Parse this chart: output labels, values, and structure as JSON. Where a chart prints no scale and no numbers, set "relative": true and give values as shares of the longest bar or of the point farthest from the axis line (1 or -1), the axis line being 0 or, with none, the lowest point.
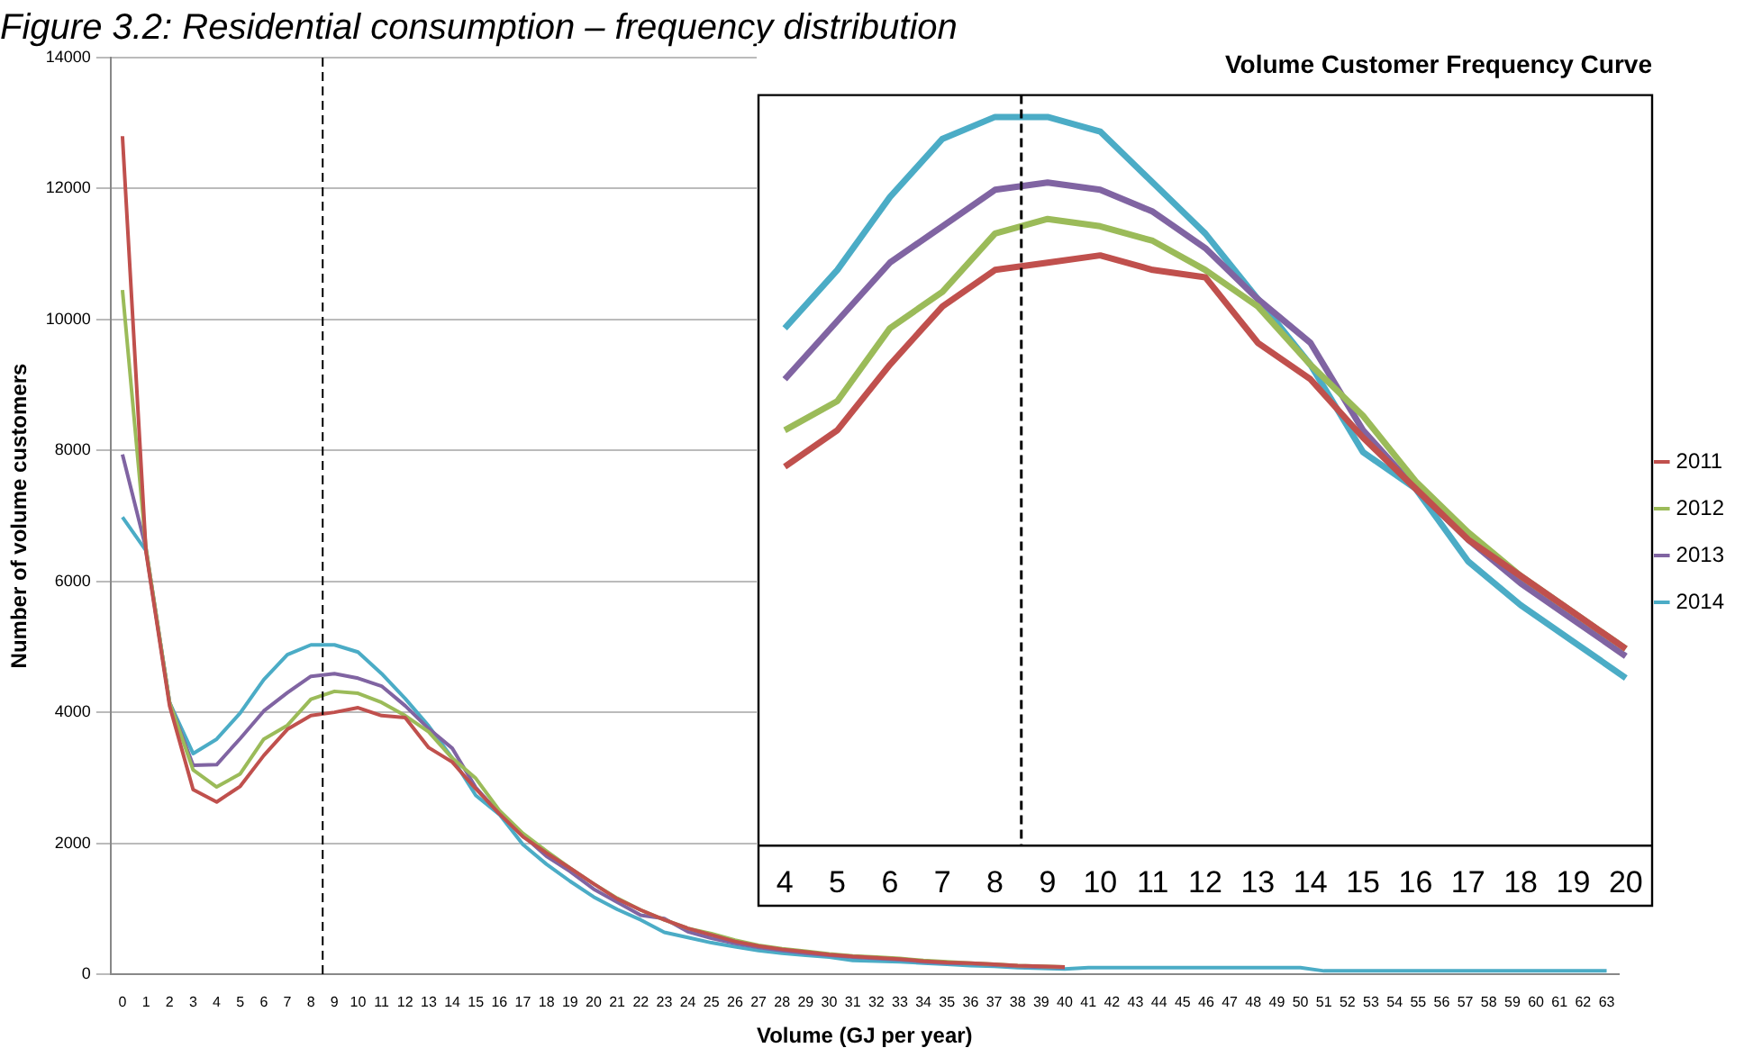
{
  "chart_data": [
    {
      "type": "line",
      "title": "Figure 3.2: Residential consumption – frequency distribution",
      "xlabel": "Volume (GJ per year)",
      "ylabel": "Number of volume customers",
      "x": [
        0,
        1,
        2,
        3,
        4,
        5,
        6,
        7,
        8,
        9,
        10,
        11,
        12,
        13,
        14,
        15,
        16,
        17,
        18,
        19,
        20,
        21,
        22,
        23,
        24,
        25,
        26,
        27,
        28,
        29,
        30,
        31,
        32,
        33,
        34,
        35,
        36,
        37,
        38,
        39,
        40,
        41,
        42,
        43,
        44,
        45,
        46,
        47,
        48,
        49,
        50,
        51,
        52,
        53,
        54,
        55,
        56,
        57,
        58,
        59,
        60,
        61,
        62,
        63
      ],
      "series": [
        {
          "name": "2011",
          "color": "#c0504d",
          "values": [
            12800,
            6450,
            4100,
            2820,
            2630,
            2870,
            3340,
            3740,
            3950,
            4000,
            4070,
            3950,
            3920,
            3460,
            3240,
            2830,
            2450,
            2100,
            1850,
            1620,
            1380,
            1150,
            980,
            830,
            700,
            600,
            500,
            430,
            380,
            340,
            300,
            270,
            250,
            230,
            200,
            180,
            170,
            150,
            130,
            120,
            110,
            null,
            null,
            null,
            null,
            null,
            null,
            null,
            null,
            null,
            null,
            null,
            null,
            null,
            null,
            null,
            null,
            null,
            null,
            null,
            null,
            null,
            null,
            null
          ]
        },
        {
          "name": "2012",
          "color": "#9bbb59",
          "values": [
            10450,
            6500,
            4150,
            3120,
            2860,
            3060,
            3590,
            3800,
            4200,
            4320,
            4290,
            4150,
            3950,
            3700,
            3300,
            2990,
            2500,
            2150,
            1880,
            1620,
            1380,
            1160,
            980,
            830,
            700,
            620,
            520,
            440,
            390,
            350,
            310,
            280,
            260,
            240,
            210,
            190,
            170,
            150,
            130,
            120,
            110,
            null,
            null,
            null,
            null,
            null,
            null,
            null,
            null,
            null,
            null,
            null,
            null,
            null,
            null,
            null,
            null,
            null,
            null,
            null,
            null,
            null,
            null,
            null
          ]
        },
        {
          "name": "2013",
          "color": "#8064a2",
          "values": [
            7940,
            6500,
            4150,
            3190,
            3200,
            3600,
            4020,
            4300,
            4550,
            4590,
            4520,
            4400,
            4100,
            3750,
            3450,
            2850,
            2450,
            2120,
            1800,
            1570,
            1300,
            1100,
            900,
            850,
            650,
            550,
            470,
            410,
            360,
            320,
            290,
            260,
            240,
            220,
            190,
            170,
            160,
            140,
            120,
            110,
            100,
            null,
            null,
            null,
            null,
            null,
            null,
            null,
            null,
            null,
            null,
            null,
            null,
            null,
            null,
            null,
            null,
            null,
            null,
            null,
            null,
            null,
            null,
            null
          ]
        },
        {
          "name": "2014",
          "color": "#4bacc6",
          "values": [
            6980,
            6470,
            4150,
            3370,
            3590,
            3990,
            4500,
            4880,
            5030,
            5030,
            4920,
            4590,
            4210,
            3790,
            3300,
            2730,
            2440,
            1980,
            1680,
            1420,
            1180,
            990,
            830,
            640,
            560,
            480,
            420,
            360,
            320,
            290,
            260,
            210,
            200,
            190,
            170,
            150,
            130,
            120,
            100,
            90,
            80,
            100,
            100,
            100,
            100,
            100,
            100,
            100,
            100,
            100,
            100,
            50,
            50,
            50,
            50,
            50,
            50,
            50,
            50,
            50,
            50,
            50,
            50,
            50
          ]
        }
      ],
      "xlim": [
        -0.5,
        63.5
      ],
      "xticks": [
        0,
        1,
        2,
        3,
        4,
        5,
        6,
        7,
        8,
        9,
        10,
        11,
        12,
        13,
        14,
        15,
        16,
        17,
        18,
        19,
        20,
        21,
        22,
        23,
        24,
        25,
        26,
        27,
        28,
        29,
        30,
        31,
        32,
        33,
        34,
        35,
        36,
        37,
        38,
        39,
        40,
        41,
        42,
        43,
        44,
        45,
        46,
        47,
        48,
        49,
        50,
        51,
        52,
        53,
        54,
        55,
        56,
        57,
        58,
        59,
        60,
        61,
        62,
        63
      ],
      "ylim": [
        0,
        14000
      ],
      "yticks": [
        0,
        2000,
        4000,
        6000,
        8000,
        10000,
        12000,
        14000
      ],
      "grid": "y",
      "legend": "right",
      "marker": "none",
      "line_style": "solid",
      "ref_lines": [
        {
          "axis": "x",
          "value": 8.5,
          "color": "#000000",
          "line_style": "dashed"
        }
      ]
    },
    {
      "type": "line",
      "title": "Volume Customer Frequency Curve",
      "relative": true,
      "x": [
        4,
        5,
        6,
        7,
        8,
        9,
        10,
        11,
        12,
        13,
        14,
        15,
        16,
        17,
        18,
        19,
        20
      ],
      "series": [
        {
          "color": "#c0504d",
          "values": [
            0.52,
            0.57,
            0.66,
            0.74,
            0.79,
            0.8,
            0.81,
            0.79,
            0.78,
            0.69,
            0.64,
            0.56,
            0.49,
            0.42,
            0.37,
            0.32,
            0.27
          ]
        },
        {
          "color": "#9bbb59",
          "values": [
            0.57,
            0.61,
            0.71,
            0.76,
            0.84,
            0.86,
            0.85,
            0.83,
            0.79,
            0.74,
            0.66,
            0.59,
            0.5,
            0.43,
            0.37,
            0.32,
            0.27
          ]
        },
        {
          "color": "#8064a2",
          "values": [
            0.64,
            0.72,
            0.8,
            0.85,
            0.9,
            0.91,
            0.9,
            0.87,
            0.82,
            0.75,
            0.69,
            0.57,
            0.49,
            0.42,
            0.36,
            0.31,
            0.26
          ]
        },
        {
          "color": "#4bacc6",
          "values": [
            0.71,
            0.79,
            0.89,
            0.97,
            1,
            1,
            0.98,
            0.91,
            0.84,
            0.75,
            0.66,
            0.54,
            0.49,
            0.39,
            0.33,
            0.28,
            0.23
          ]
        }
      ],
      "xlim": [
        3.5,
        20.5
      ],
      "xticks": [
        4,
        5,
        6,
        7,
        8,
        9,
        10,
        11,
        12,
        13,
        14,
        15,
        16,
        17,
        18,
        19,
        20
      ],
      "legend": false,
      "marker": "none",
      "line_style": "solid",
      "ref_lines": [
        {
          "axis": "x",
          "value": 8.5,
          "color": "#000000",
          "line_style": "dashed"
        }
      ]
    }
  ]
}
